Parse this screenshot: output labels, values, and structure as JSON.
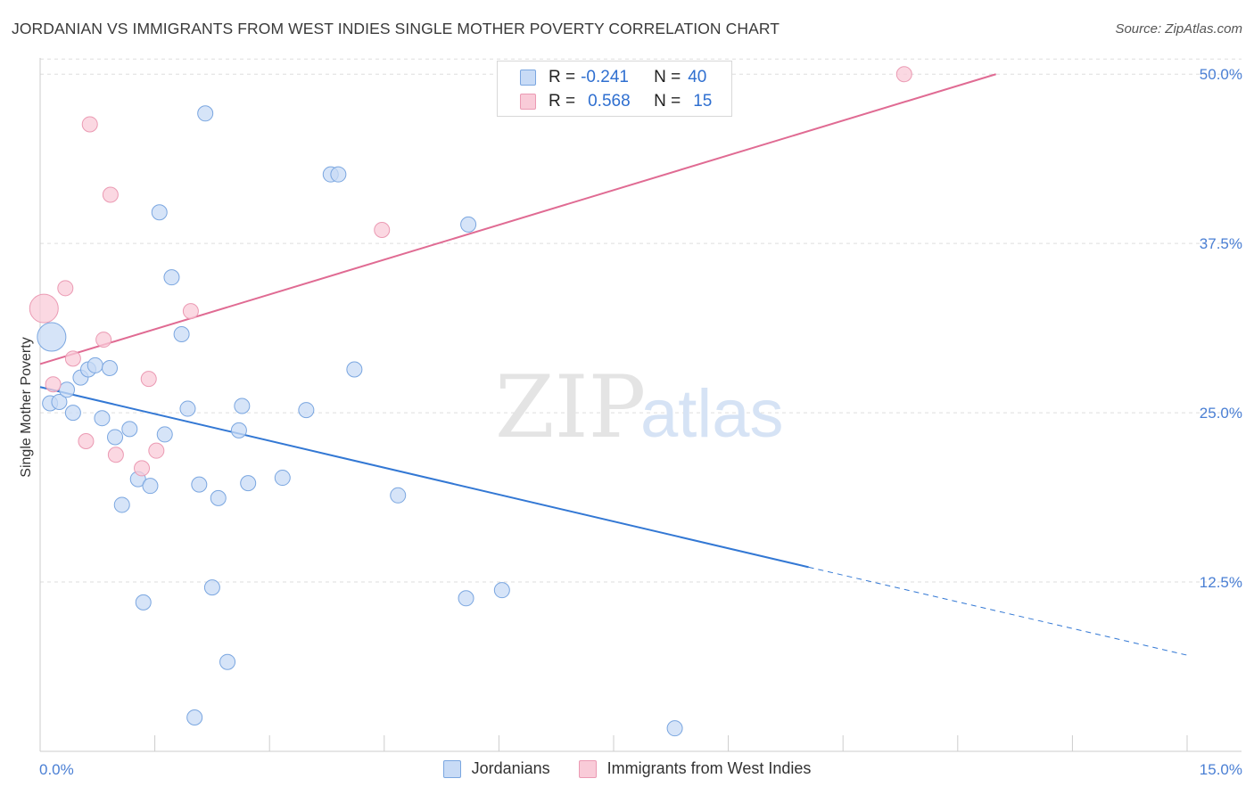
{
  "header": {
    "title": "JORDANIAN VS IMMIGRANTS FROM WEST INDIES SINGLE MOTHER POVERTY CORRELATION CHART",
    "source": "Source: ZipAtlas.com"
  },
  "legend": {
    "rows": [
      {
        "r_label": "R =",
        "r_value": "-0.241",
        "n_label": "N =",
        "n_value": "40"
      },
      {
        "r_label": "R =",
        "r_value": "0.568",
        "n_label": "N =",
        "n_value": "15"
      }
    ]
  },
  "colors": {
    "jordanians_fill": "#c8dbf6",
    "jordanians_stroke": "#7aa6e0",
    "jordanians_line": "#3378d4",
    "westindies_fill": "#f9cbd8",
    "westindies_stroke": "#eb9ab3",
    "westindies_line": "#e06b93",
    "tick_text": "#4a7fd4",
    "grid": "#dddddd"
  },
  "watermark": {
    "zip": "ZIP",
    "atlas": "atlas"
  },
  "chart_data": {
    "type": "scatter",
    "title": "JORDANIAN VS IMMIGRANTS FROM WEST INDIES SINGLE MOTHER POVERTY CORRELATION CHART",
    "xlabel": "",
    "ylabel": "Single Mother Poverty",
    "xlim": [
      0,
      15
    ],
    "ylim": [
      0,
      51.2
    ],
    "x_tick_labels": [
      "0.0%",
      "15.0%"
    ],
    "y_tick_values": [
      12.5,
      25.0,
      37.5,
      50.0
    ],
    "y_tick_labels": [
      "12.5%",
      "25.0%",
      "37.5%",
      "50.0%"
    ],
    "grid": "horizontal dashed",
    "legend_position": "bottom",
    "series": [
      {
        "name": "Jordanians",
        "points": [
          {
            "x": 0.15,
            "y": 30.6,
            "size": "large"
          },
          {
            "x": 0.13,
            "y": 25.7
          },
          {
            "x": 0.25,
            "y": 25.8
          },
          {
            "x": 0.35,
            "y": 26.7
          },
          {
            "x": 0.43,
            "y": 25.0
          },
          {
            "x": 0.53,
            "y": 27.6
          },
          {
            "x": 0.63,
            "y": 28.2
          },
          {
            "x": 0.72,
            "y": 28.5
          },
          {
            "x": 0.81,
            "y": 24.6
          },
          {
            "x": 0.91,
            "y": 28.3
          },
          {
            "x": 0.98,
            "y": 23.2
          },
          {
            "x": 1.17,
            "y": 23.8
          },
          {
            "x": 1.07,
            "y": 18.2
          },
          {
            "x": 1.28,
            "y": 20.1
          },
          {
            "x": 1.44,
            "y": 19.6
          },
          {
            "x": 1.63,
            "y": 23.4
          },
          {
            "x": 1.72,
            "y": 35.0
          },
          {
            "x": 1.85,
            "y": 30.8
          },
          {
            "x": 1.93,
            "y": 25.3
          },
          {
            "x": 2.08,
            "y": 19.7
          },
          {
            "x": 2.33,
            "y": 18.7
          },
          {
            "x": 2.6,
            "y": 23.7
          },
          {
            "x": 2.64,
            "y": 25.5
          },
          {
            "x": 2.72,
            "y": 19.8
          },
          {
            "x": 3.17,
            "y": 20.2
          },
          {
            "x": 3.48,
            "y": 25.2
          },
          {
            "x": 3.8,
            "y": 42.6
          },
          {
            "x": 3.9,
            "y": 42.6
          },
          {
            "x": 4.11,
            "y": 28.2
          },
          {
            "x": 4.68,
            "y": 18.9
          },
          {
            "x": 5.6,
            "y": 38.9
          },
          {
            "x": 1.56,
            "y": 39.8
          },
          {
            "x": 2.16,
            "y": 47.1
          },
          {
            "x": 2.25,
            "y": 12.1
          },
          {
            "x": 1.35,
            "y": 11.0
          },
          {
            "x": 2.45,
            "y": 6.6
          },
          {
            "x": 2.02,
            "y": 2.5
          },
          {
            "x": 5.57,
            "y": 11.3
          },
          {
            "x": 6.04,
            "y": 11.9
          },
          {
            "x": 8.3,
            "y": 1.7
          }
        ],
        "trend": {
          "x": [
            0,
            10.05
          ],
          "y": [
            26.9,
            13.6
          ],
          "dashed_extension_to": {
            "x": 15,
            "y": 7.1
          }
        }
      },
      {
        "name": "Immigrants from West Indies",
        "points": [
          {
            "x": 0.05,
            "y": 32.7,
            "size": "large"
          },
          {
            "x": 0.17,
            "y": 27.1
          },
          {
            "x": 0.33,
            "y": 34.2
          },
          {
            "x": 0.43,
            "y": 29.0
          },
          {
            "x": 0.6,
            "y": 22.9
          },
          {
            "x": 0.65,
            "y": 46.3
          },
          {
            "x": 0.83,
            "y": 30.4
          },
          {
            "x": 0.92,
            "y": 41.1
          },
          {
            "x": 0.99,
            "y": 21.9
          },
          {
            "x": 1.33,
            "y": 20.9
          },
          {
            "x": 1.42,
            "y": 27.5
          },
          {
            "x": 1.52,
            "y": 22.2
          },
          {
            "x": 1.97,
            "y": 32.5
          },
          {
            "x": 4.47,
            "y": 38.5
          },
          {
            "x": 11.3,
            "y": 50.0
          }
        ],
        "trend": {
          "x": [
            0,
            12.5
          ],
          "y": [
            28.6,
            50.0
          ]
        }
      }
    ]
  }
}
